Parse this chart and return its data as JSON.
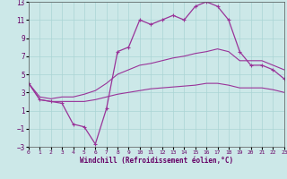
{
  "xlabel": "Windchill (Refroidissement éolien,°C)",
  "bg_color": "#cce8e8",
  "grid_color": "#aad4d4",
  "line_color": "#993399",
  "x": [
    0,
    1,
    2,
    3,
    4,
    5,
    6,
    7,
    8,
    9,
    10,
    11,
    12,
    13,
    14,
    15,
    16,
    17,
    18,
    19,
    20,
    21,
    22,
    23
  ],
  "y_main": [
    4.0,
    2.2,
    2.0,
    1.8,
    -0.5,
    -0.8,
    -2.7,
    1.2,
    7.5,
    8.0,
    11.0,
    10.5,
    11.0,
    11.5,
    11.0,
    12.5,
    13.0,
    12.5,
    11.0,
    7.5,
    6.0,
    6.0,
    5.5,
    4.5
  ],
  "y_upper": [
    4.0,
    2.5,
    2.3,
    2.5,
    2.5,
    2.8,
    3.2,
    4.0,
    5.0,
    5.5,
    6.0,
    6.2,
    6.5,
    6.8,
    7.0,
    7.3,
    7.5,
    7.8,
    7.5,
    6.5,
    6.5,
    6.5,
    6.0,
    5.5
  ],
  "y_lower": [
    4.0,
    2.2,
    2.0,
    2.0,
    2.0,
    2.0,
    2.2,
    2.5,
    2.8,
    3.0,
    3.2,
    3.4,
    3.5,
    3.6,
    3.7,
    3.8,
    4.0,
    4.0,
    3.8,
    3.5,
    3.5,
    3.5,
    3.3,
    3.0
  ],
  "ylim": [
    -3,
    13
  ],
  "yticks": [
    -3,
    -1,
    1,
    3,
    5,
    7,
    9,
    11,
    13
  ],
  "xlim": [
    0,
    23
  ]
}
